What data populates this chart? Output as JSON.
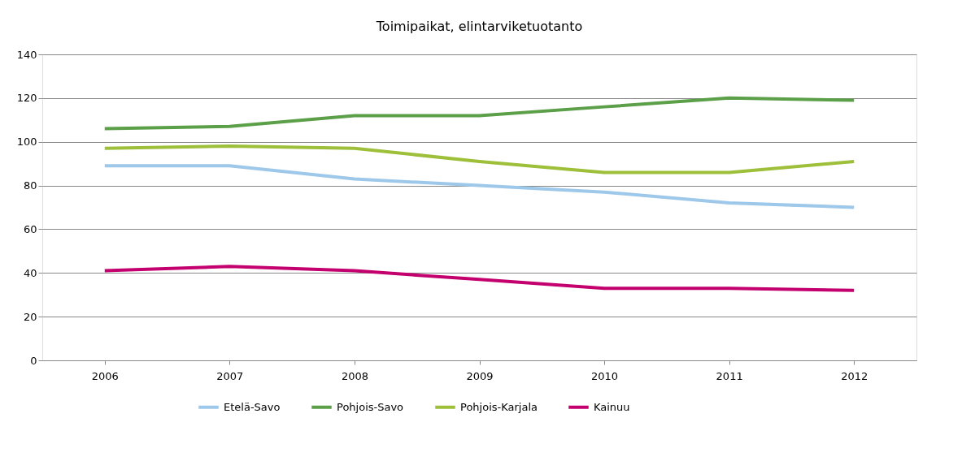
{
  "chart_data": {
    "type": "line",
    "title": "Toimipaikat, elintarviketuotanto",
    "categories": [
      "2006",
      "2007",
      "2008",
      "2009",
      "2010",
      "2011",
      "2012"
    ],
    "series": [
      {
        "name": "Etelä-Savo",
        "color": "#9dc8ea",
        "values": [
          89,
          89,
          83,
          80,
          77,
          72,
          70
        ]
      },
      {
        "name": "Pohjois-Savo",
        "color": "#5b9f48",
        "values": [
          106,
          107,
          112,
          112,
          116,
          120,
          119
        ]
      },
      {
        "name": "Pohjois-Karjala",
        "color": "#9dbf3a",
        "values": [
          97,
          98,
          97,
          91,
          86,
          86,
          91
        ]
      },
      {
        "name": "Kainuu",
        "color": "#c4006f",
        "values": [
          41,
          43,
          41,
          37,
          33,
          33,
          32
        ]
      }
    ],
    "ylim": [
      0,
      140
    ],
    "yticks": [
      0,
      20,
      40,
      60,
      80,
      100,
      120,
      140
    ],
    "grid": "y",
    "legend": "bottom",
    "marker": "none",
    "line_style": "solid"
  }
}
